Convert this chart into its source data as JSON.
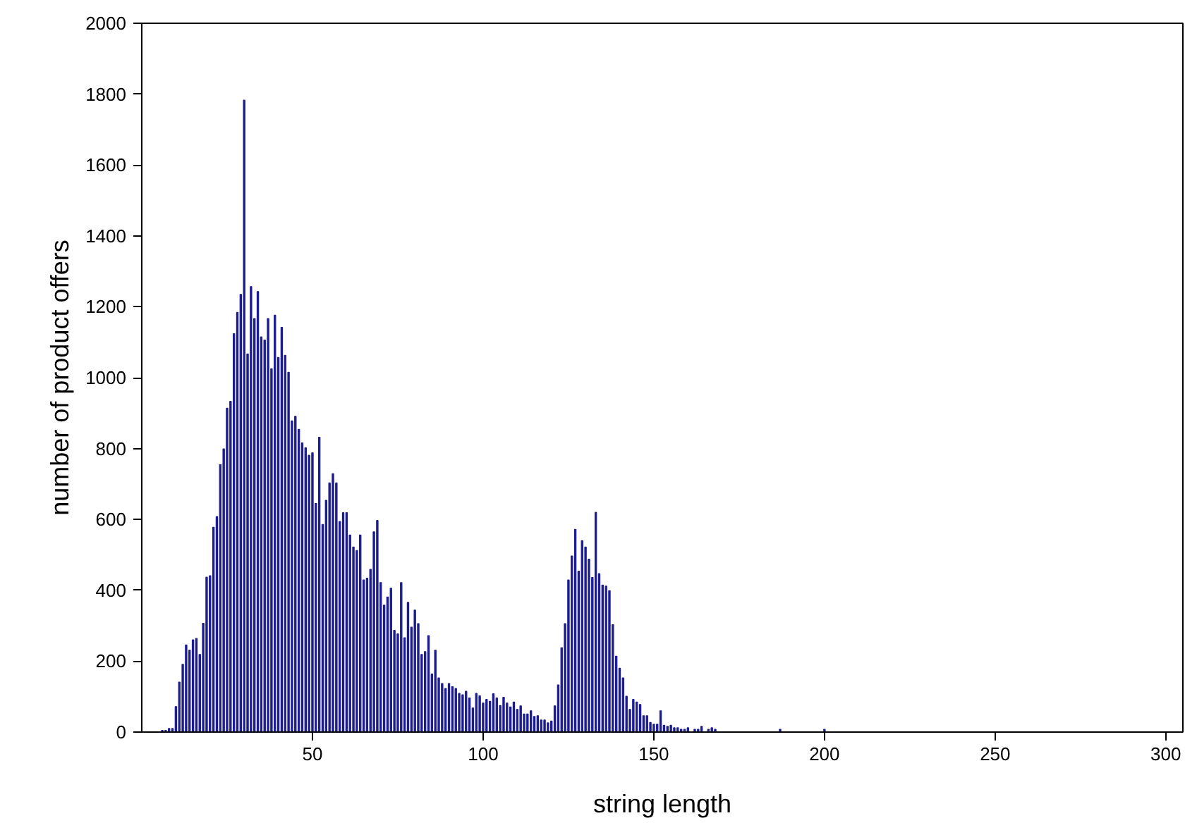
{
  "chart_data": {
    "type": "bar",
    "xlabel": "string length",
    "ylabel": "number of product offers",
    "x": [
      6,
      7,
      8,
      9,
      10,
      11,
      12,
      13,
      14,
      15,
      16,
      17,
      18,
      19,
      20,
      21,
      22,
      23,
      24,
      25,
      26,
      27,
      28,
      29,
      30,
      31,
      32,
      33,
      34,
      35,
      36,
      37,
      38,
      39,
      40,
      41,
      42,
      43,
      44,
      45,
      46,
      47,
      48,
      49,
      50,
      51,
      52,
      53,
      54,
      55,
      56,
      57,
      58,
      59,
      60,
      61,
      62,
      63,
      64,
      65,
      66,
      67,
      68,
      69,
      70,
      71,
      72,
      73,
      74,
      75,
      76,
      77,
      78,
      79,
      80,
      81,
      82,
      83,
      84,
      85,
      86,
      87,
      88,
      89,
      90,
      91,
      92,
      93,
      94,
      95,
      96,
      97,
      98,
      99,
      100,
      101,
      102,
      103,
      104,
      105,
      106,
      107,
      108,
      109,
      110,
      111,
      112,
      113,
      114,
      115,
      116,
      117,
      118,
      119,
      120,
      121,
      122,
      123,
      124,
      125,
      126,
      127,
      128,
      129,
      130,
      131,
      132,
      133,
      134,
      135,
      136,
      137,
      138,
      139,
      140,
      141,
      142,
      143,
      144,
      145,
      146,
      147,
      148,
      149,
      150,
      151,
      152,
      153,
      154,
      155,
      156,
      157,
      158,
      159,
      160,
      162,
      163,
      164,
      166,
      167,
      168,
      187,
      200
    ],
    "values": [
      5,
      5,
      10,
      10,
      72,
      141,
      191,
      246,
      231,
      260,
      264,
      219,
      307,
      437,
      441,
      578,
      608,
      755,
      799,
      914,
      933,
      1124,
      1184,
      1235,
      1783,
      1067,
      1257,
      1167,
      1243,
      1115,
      1106,
      1167,
      1025,
      1176,
      1057,
      1142,
      1063,
      1015,
      878,
      891,
      854,
      816,
      802,
      781,
      788,
      645,
      832,
      586,
      654,
      703,
      729,
      703,
      594,
      619,
      619,
      556,
      522,
      512,
      556,
      429,
      434,
      459,
      565,
      597,
      422,
      358,
      381,
      406,
      287,
      277,
      422,
      266,
      366,
      296,
      344,
      306,
      219,
      227,
      272,
      164,
      231,
      153,
      137,
      123,
      137,
      128,
      123,
      109,
      105,
      115,
      96,
      68,
      109,
      102,
      82,
      92,
      87,
      108,
      96,
      75,
      98,
      82,
      71,
      85,
      64,
      74,
      51,
      51,
      60,
      44,
      46,
      34,
      34,
      26,
      31,
      74,
      133,
      238,
      306,
      429,
      497,
      572,
      454,
      540,
      522,
      488,
      436,
      620,
      447,
      415,
      412,
      399,
      303,
      214,
      180,
      153,
      101,
      64,
      92,
      85,
      78,
      46,
      46,
      27,
      22,
      22,
      60,
      19,
      16,
      19,
      12,
      12,
      8,
      8,
      12,
      8,
      8,
      16,
      8,
      12,
      8,
      8,
      8
    ],
    "color": "#1c1c90",
    "xlim": [
      0,
      305
    ],
    "ylim": [
      0,
      2000
    ],
    "xticks": [
      50,
      100,
      150,
      200,
      250,
      300
    ],
    "yticks": [
      0,
      200,
      400,
      600,
      800,
      1000,
      1200,
      1400,
      1600,
      1800,
      2000
    ],
    "grid": false
  }
}
